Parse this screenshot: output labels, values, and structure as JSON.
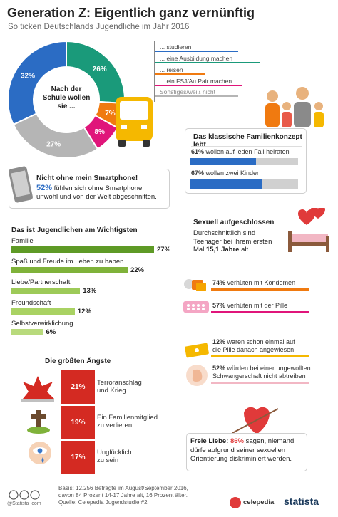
{
  "header": {
    "title": "Generation Z: Eigentlich ganz vernünftig",
    "subtitle": "So ticken Deutschlands Jugendliche im Jahr 2016"
  },
  "donut": {
    "center_label_1": "Nach der",
    "center_label_2": "Schule wollen",
    "center_label_3": "sie ..."
  },
  "chart_data": [
    {
      "type": "pie",
      "title": "Nach der Schule wollen sie ...",
      "categories": [
        "... studieren",
        "... eine Ausbildung machen",
        "... reisen",
        "... ein FSJ/Au Pair machen",
        "Sonstiges/weiß nicht"
      ],
      "values": [
        32,
        26,
        7,
        8,
        27
      ],
      "value_labels": [
        "32%",
        "26%",
        "7%",
        "8%",
        "27%"
      ],
      "colors": [
        "#2b6cc4",
        "#1a9a7a",
        "#f07a10",
        "#e0157a",
        "#b5b5b5"
      ]
    },
    {
      "type": "bar",
      "title": "Das ist Jugendlichen am Wichtigsten",
      "categories": [
        "Familie",
        "Spaß und Freude im Leben zu haben",
        "Liebe/Partnerschaft",
        "Freundschaft",
        "Selbstverwirklichung"
      ],
      "values": [
        27,
        22,
        13,
        12,
        6
      ],
      "value_labels": [
        "27%",
        "22%",
        "13%",
        "12%",
        "6%"
      ],
      "colors": [
        "#5e9a26",
        "#7fb23a",
        "#9dca58",
        "#a9d263",
        "#b8da7c"
      ]
    },
    {
      "type": "bar",
      "title": "Die größten Ängste",
      "categories": [
        "Terroranschlag und Krieg",
        "Ein Familienmitglied zu verlieren",
        "Unglücklich zu sein"
      ],
      "values": [
        21,
        19,
        17
      ],
      "value_labels": [
        "21%",
        "19%",
        "17%"
      ],
      "colors": [
        "#d42a22",
        "#d42a22",
        "#d42a22"
      ]
    },
    {
      "type": "bar",
      "title": "Das klassische Familienkonzept lebt",
      "categories": [
        "wollen auf jeden Fall heiraten",
        "wollen zwei Kinder"
      ],
      "values": [
        61,
        67
      ],
      "value_labels": [
        "61%",
        "67%"
      ],
      "colors": [
        "#2b6cc4",
        "#2b6cc4"
      ]
    }
  ],
  "legend": {
    "items": [
      "... studieren",
      "... eine Ausbildung machen",
      "... reisen",
      "... ein FSJ/Au Pair machen",
      "Sonstiges/weiß nicht"
    ]
  },
  "family": {
    "title": "Das klassische Familienkonzept lebt",
    "row1_pct": "61%",
    "row1_text": " wollen auf jeden Fall heiraten",
    "row2_pct": "67%",
    "row2_text": " wollen zwei Kinder"
  },
  "smartphone": {
    "title": "Nicht ohne mein Smartphone!",
    "pct": "52%",
    "text1": " fühlen sich ohne Smartphone",
    "text2": "unwohl und von der Welt abgeschnitten."
  },
  "values_section": {
    "title": "Das ist Jugendlichen am Wichtigsten"
  },
  "sexuality": {
    "title": "Sexuell aufgeschlossen",
    "line1": "Durchschnittlich sind",
    "line2": "Teenager bei ihrem ersten",
    "line3a": "Mal ",
    "age": "15,1 Jahre",
    "line3b": " alt.",
    "condom_pct": "74%",
    "condom_text": " verhüten mit Kondomen",
    "pill_pct": "57%",
    "pill_text": " verhüten mit der Pille",
    "morning_pct": "12%",
    "morning_text1": " waren schon einmal auf",
    "morning_text2": "die Pille danach angewiesen",
    "abort_pct": "52%",
    "abort_text1": " würden bei einer ungewollten",
    "abort_text2": "Schwangerschaft nicht abtreiben"
  },
  "fears": {
    "title": "Die größten Ängste",
    "items": [
      {
        "value": "21%",
        "line1": "Terroranschlag",
        "line2": "und Krieg"
      },
      {
        "value": "19%",
        "line1": "Ein Familienmitglied",
        "line2": "zu verlieren"
      },
      {
        "value": "17%",
        "line1": "Unglücklich",
        "line2": "zu sein"
      }
    ]
  },
  "love": {
    "line1a": "Freie Liebe: ",
    "pct": "86%",
    "line1b": " sagen, niemand",
    "line2": "dürfe aufgrund seiner sexuellen",
    "line3": "Orientierung diskriminiert werden."
  },
  "footer": {
    "source_line1": "Basis: 12.256 Befragte im August/September 2016,",
    "source_line2": "davon 84 Prozent 14-17 Jahre alt, 16 Prozent älter.",
    "source_line3": "Quelle: Celepedia Jugendstudie #2",
    "credit": "@Statista_com",
    "brand1": "celepedia",
    "brand2": "statista"
  }
}
